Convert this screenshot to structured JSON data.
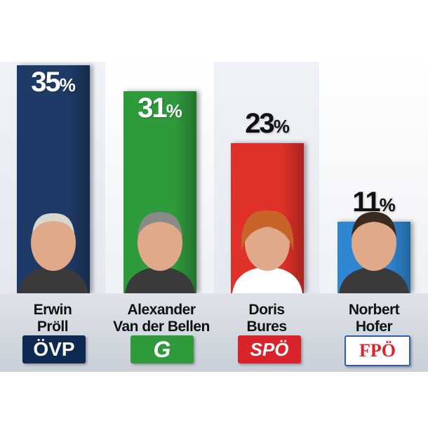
{
  "chart_data": {
    "type": "bar",
    "categories": [
      "Erwin Pröll",
      "Alexander Van der Bellen",
      "Doris Bures",
      "Norbert Hofer"
    ],
    "values": [
      35,
      31,
      23,
      11
    ],
    "value_labels": [
      "35",
      "31",
      "23",
      "11"
    ],
    "unit": "%",
    "ylim": [
      0,
      35
    ],
    "colors": [
      "#1e3a66",
      "#2e9a3c",
      "#e0302a",
      "#2f86d2"
    ],
    "grid": false,
    "legend": "none"
  },
  "candidates": [
    {
      "first": "Erwin",
      "last": "Pröll",
      "party": "ÖVP",
      "logo_bg": "#0f2a52",
      "logo_fg": "#ffffff"
    },
    {
      "first": "Alexander",
      "last": "Van der Bellen",
      "party": "G",
      "logo_bg": "#2e9a3c",
      "logo_fg": "#ffffff"
    },
    {
      "first": "Doris",
      "last": "Bures",
      "party": "SPÖ",
      "logo_bg": "#d8232a",
      "logo_fg": "#ffffff"
    },
    {
      "first": "Norbert",
      "last": "Hofer",
      "party": "FPÖ",
      "logo_bg": "#ffffff",
      "logo_fg": "#d8232a"
    }
  ]
}
